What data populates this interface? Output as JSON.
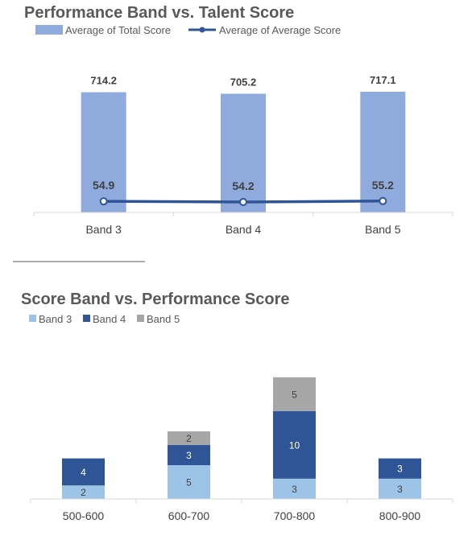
{
  "chart_data": [
    {
      "type": "bar",
      "title": "Performance Band vs. Talent Score",
      "categories": [
        "Band 3",
        "Band 4",
        "Band 5"
      ],
      "series": [
        {
          "name": "Average of Total Score",
          "type": "bar",
          "values": [
            714.2,
            705.2,
            717.1
          ],
          "color": "#8faadc"
        },
        {
          "name": "Average of Average Score",
          "type": "line",
          "values": [
            54.9,
            54.2,
            55.2
          ],
          "color": "#2f5597"
        }
      ],
      "legend_position": "top-left",
      "grid": false
    },
    {
      "type": "bar",
      "stacked": true,
      "title": "Score Band vs. Performance Score",
      "categories": [
        "500-600",
        "600-700",
        "700-800",
        "800-900"
      ],
      "series": [
        {
          "name": "Band 3",
          "values": [
            2,
            5,
            3,
            3
          ],
          "color": "#9dc3e6"
        },
        {
          "name": "Band 4",
          "values": [
            4,
            3,
            10,
            3
          ],
          "color": "#2f5597"
        },
        {
          "name": "Band 5",
          "values": [
            null,
            2,
            5,
            null
          ],
          "color": "#a6a6a6"
        }
      ],
      "legend_position": "top-left",
      "grid": false
    }
  ]
}
